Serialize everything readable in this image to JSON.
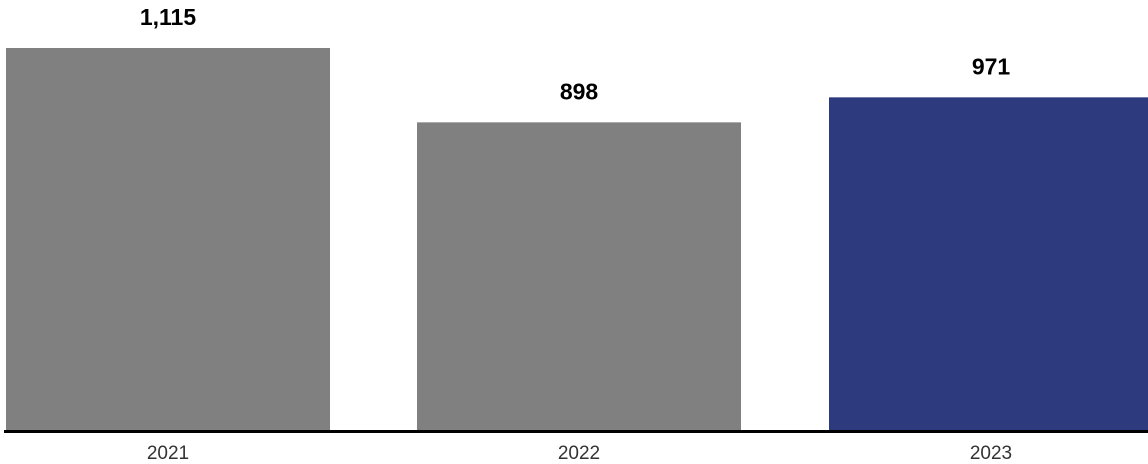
{
  "chart_data": {
    "type": "bar",
    "categories": [
      "2021",
      "2022",
      "2023"
    ],
    "values": [
      1115,
      898,
      971
    ],
    "value_labels": [
      "1,115",
      "898",
      "971"
    ],
    "bar_colors": [
      "#808080",
      "#808080",
      "#2e3a7e"
    ],
    "axis_color": "#000000",
    "title": "",
    "xlabel": "",
    "ylabel": "",
    "grid": false
  }
}
